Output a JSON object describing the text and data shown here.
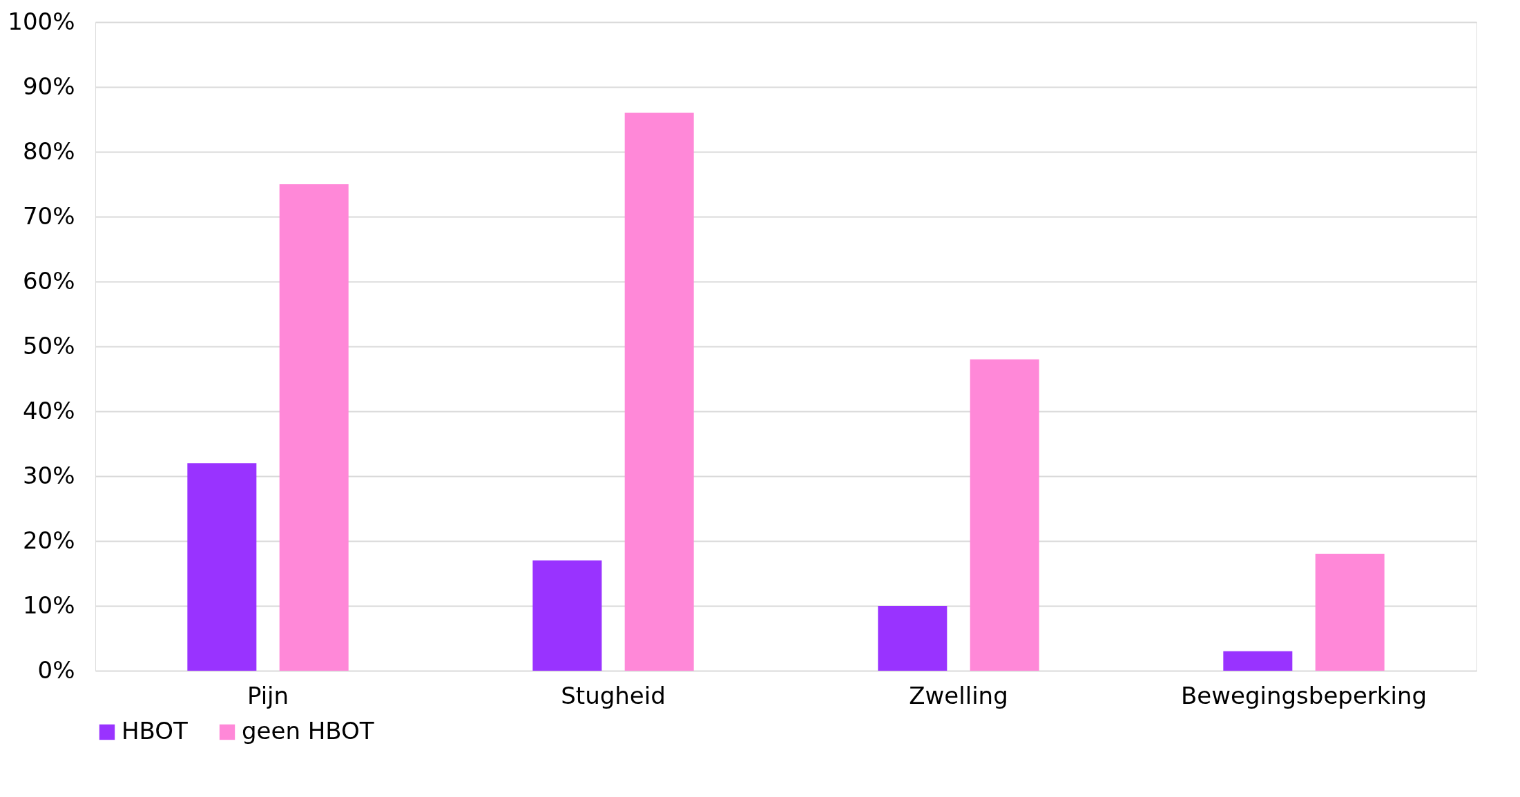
{
  "chart_data": {
    "type": "bar",
    "categories": [
      "Pijn",
      "Stugheid",
      "Zwelling",
      "Bewegingsbeperking"
    ],
    "series": [
      {
        "name": "HBOT",
        "color": "#9933ff",
        "values": [
          32,
          17,
          10,
          3
        ]
      },
      {
        "name": "geen HBOT",
        "color": "#ff88d8",
        "values": [
          75,
          86,
          48,
          18
        ]
      }
    ],
    "ylim": [
      0,
      100
    ],
    "yticks": [
      {
        "value": 0,
        "label": "0%"
      },
      {
        "value": 10,
        "label": "10%"
      },
      {
        "value": 20,
        "label": "20%"
      },
      {
        "value": 30,
        "label": "30%"
      },
      {
        "value": 40,
        "label": "40%"
      },
      {
        "value": 50,
        "label": "50%"
      },
      {
        "value": 60,
        "label": "60%"
      },
      {
        "value": 70,
        "label": "70%"
      },
      {
        "value": 80,
        "label": "80%"
      },
      {
        "value": 90,
        "label": "90%"
      },
      {
        "value": 100,
        "label": "100%"
      }
    ],
    "grid": "y",
    "legend": "bottom"
  }
}
